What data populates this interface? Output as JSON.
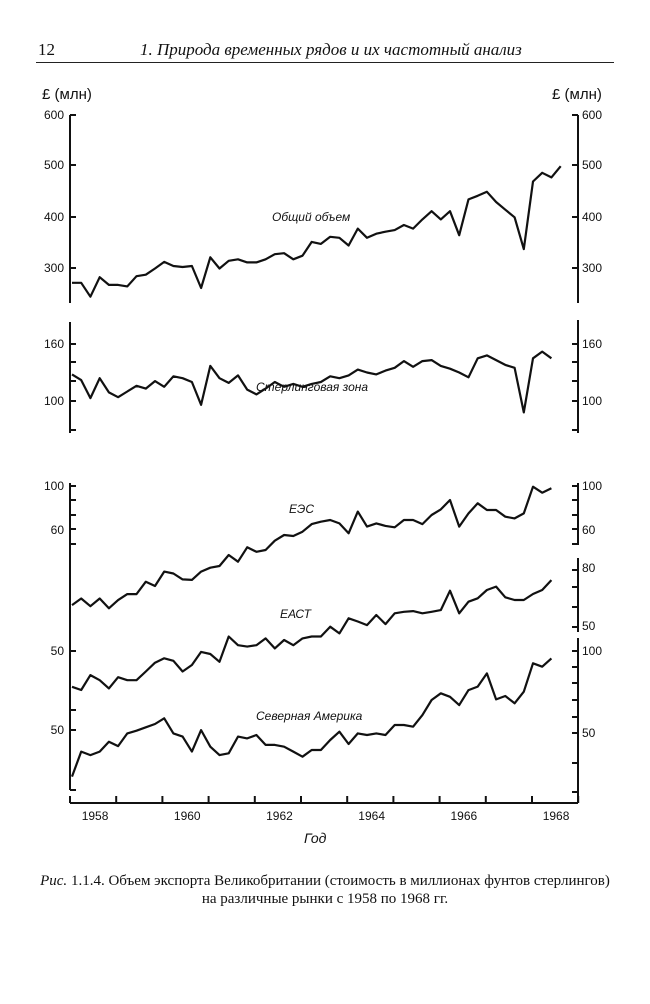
{
  "page": {
    "number": "12",
    "running_title": "1. Природа временных рядов и их частотный анализ",
    "unit_left": "£ (млн)",
    "unit_right": "£ (млн)",
    "caption_prefix": "Рис.",
    "caption_text": "1.1.4. Объем экспорта Великобритании (стоимость в миллионах фунтов стерлингов) на различные рынки с 1958 по 1968 гг."
  },
  "chart_data": {
    "type": "line",
    "xlabel": "Год",
    "x_start": 1958.0,
    "x_step": 0.2,
    "xlim": [
      1958,
      1969
    ],
    "x_tick_labels": [
      "1958",
      "1960",
      "1962",
      "1964",
      "1966",
      "1968"
    ],
    "series": [
      {
        "name": "Общий объем",
        "panel": "total",
        "ylim": [
          240,
          600
        ],
        "y_tick_labels_left": [
          "600",
          "500",
          "400",
          "300"
        ],
        "y_tick_labels_right": [
          "600",
          "500",
          "400",
          "300"
        ],
        "values": [
          272,
          272,
          245,
          283,
          268,
          268,
          265,
          285,
          288,
          300,
          313,
          305,
          303,
          305,
          262,
          322,
          300,
          315,
          318,
          312,
          312,
          318,
          328,
          330,
          318,
          325,
          352,
          348,
          362,
          360,
          345,
          378,
          360,
          368,
          372,
          375,
          385,
          378,
          396,
          412,
          396,
          412,
          365,
          435,
          442,
          450,
          430,
          415,
          400,
          338,
          470,
          487,
          478,
          500
        ]
      },
      {
        "name": "Стерлинговая зона",
        "panel": "sterling",
        "ylim": [
          70,
          180
        ],
        "y_tick_labels_left": [
          "160",
          "100"
        ],
        "y_tick_labels_right": [
          "160",
          "100"
        ],
        "values": [
          128,
          122,
          103,
          124,
          109,
          104,
          110,
          116,
          113,
          121,
          115,
          126,
          124,
          120,
          96,
          137,
          124,
          119,
          127,
          112,
          107,
          113,
          120,
          115,
          118,
          115,
          118,
          120,
          126,
          124,
          127,
          133,
          130,
          128,
          132,
          135,
          142,
          136,
          142,
          143,
          137,
          134,
          130,
          125,
          145,
          148,
          143,
          138,
          135,
          88,
          145,
          152,
          145
        ]
      },
      {
        "name": "ЕЭС",
        "panel": "markets",
        "scale": "log",
        "y_tick_labels_left": [
          "100",
          "60"
        ],
        "y_tick_labels_right": [
          "100",
          "60"
        ],
        "values": [
          24.5,
          26.5,
          24.2,
          26.5,
          23.6,
          26.0,
          27.9,
          27.9,
          32.3,
          30.7,
          36.4,
          35.6,
          33.2,
          33.0,
          36.4,
          38.1,
          38.9,
          44.3,
          40.9,
          48.5,
          46.0,
          47.0,
          52.4,
          56.1,
          55.4,
          58.3,
          63.8,
          65.6,
          66.9,
          64.3,
          57.2,
          73.9,
          61.9,
          64.3,
          62.4,
          61.4,
          66.9,
          66.9,
          63.8,
          71.0,
          75.9,
          84.8,
          61.9,
          72.4,
          81.5,
          75.3,
          75.3,
          69.6,
          68.2,
          72.4,
          99.2,
          92.4,
          97.3
        ]
      },
      {
        "name": "ЕАСТ",
        "panel": "markets",
        "scale": "log",
        "y_tick_labels_left": [
          "50"
        ],
        "y_tick_labels_right": [
          "80",
          "50"
        ],
        "values": [
          30.4,
          29.6,
          33.5,
          32.1,
          30.0,
          32.9,
          32.1,
          32.1,
          34.5,
          37.1,
          38.5,
          37.7,
          34.5,
          36.4,
          40.6,
          39.9,
          37.4,
          46.1,
          42.9,
          42.4,
          42.9,
          45.4,
          41.8,
          44.8,
          42.9,
          45.4,
          46.1,
          46.1,
          50.0,
          47.3,
          53.6,
          52.2,
          50.7,
          55.1,
          51.1,
          55.9,
          56.6,
          56.9,
          55.9,
          56.6,
          57.4,
          67.4,
          55.9,
          61.5,
          63.3,
          67.8,
          69.7,
          63.8,
          62.4,
          62.4,
          65.6,
          67.8,
          73.6
        ]
      },
      {
        "name": "Северная Америка",
        "panel": "markets",
        "scale": "linear",
        "y_tick_labels_left": [
          "50"
        ],
        "y_tick_labels_right": [
          "100",
          "50"
        ],
        "values": [
          23.5,
          38.8,
          36.7,
          38.8,
          44.9,
          42.2,
          50.0,
          51.6,
          53.7,
          55.7,
          59.2,
          50.0,
          48.0,
          38.8,
          52.0,
          41.8,
          36.7,
          37.8,
          48.0,
          46.9,
          49.0,
          42.9,
          42.9,
          41.8,
          38.8,
          35.7,
          39.8,
          39.8,
          45.9,
          51.0,
          43.5,
          50.0,
          49.0,
          50.0,
          49.0,
          55.1,
          55.1,
          54.1,
          61.2,
          70.4,
          74.5,
          72.4,
          67.3,
          76.5,
          78.6,
          86.7,
          70.8,
          72.9,
          68.4,
          75.5,
          92.9,
          90.8,
          95.9
        ]
      }
    ]
  }
}
